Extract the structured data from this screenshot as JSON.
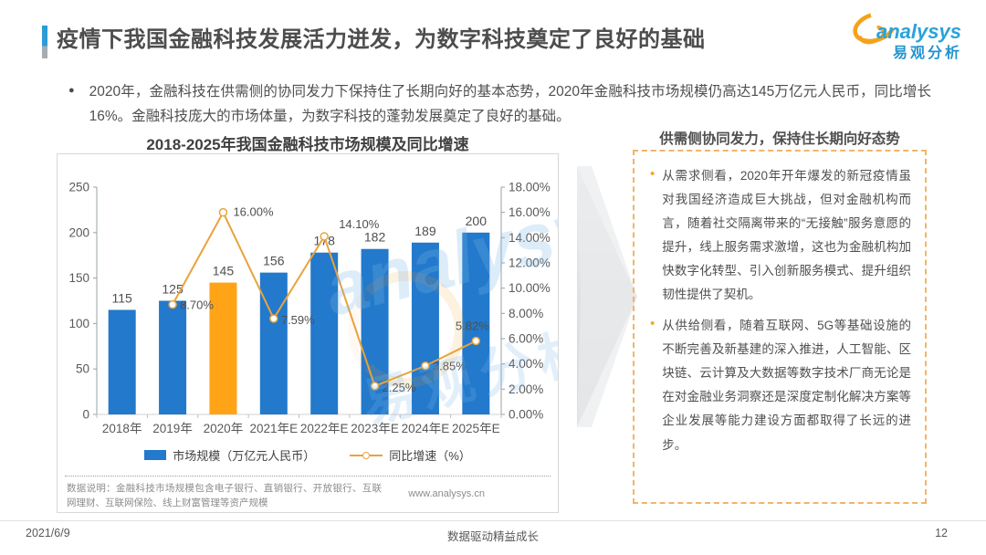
{
  "colors": {
    "bar_blue": "#2379cb",
    "bar_orange": "#ffa417",
    "line_orange": "#e8a33c",
    "accent_blue": "#2e9bd6",
    "panel_border": "#f2b469",
    "logo_blue": "#2aa2db",
    "logo_swirl_orange": "#f5a21b",
    "axis_text": "#595959",
    "note_gray": "#8c8c8c"
  },
  "header": {
    "title": "疫情下我国金融科技发展活力迸发，为数字科技奠定了良好的基础",
    "logo_en": "analysys",
    "logo_cn": "易观分析"
  },
  "summary": {
    "bullet_marker": "●",
    "text": "2020年，金融科技在供需侧的协同发力下保持住了长期向好的基本态势，2020年金融科技市场规模仍高达145万亿元人民币，同比增长16%。金融科技庞大的市场体量，为数字科技的蓬勃发展奠定了良好的基础。"
  },
  "chart": {
    "title": "2018-2025年我国金融科技市场规模及同比增速",
    "note": "数据说明：金融科技市场规模包含电子银行、直销银行、开放银行、互联网理财、互联网保险、线上财富管理等资产规模",
    "source": "www.analysys.cn",
    "watermark_en": "analysys",
    "watermark_cn": "易观分析"
  },
  "chart_data": {
    "type": "bar+line combo",
    "title": "2018-2025年我国金融科技市场规模及同比增速",
    "categories": [
      "2018年",
      "2019年",
      "2020年",
      "2021年E",
      "2022年E",
      "2023年E",
      "2024年E",
      "2025年E"
    ],
    "series": [
      {
        "name": "市场规模（万亿元人民币）",
        "type": "bar",
        "values": [
          115,
          125,
          145,
          156,
          178,
          182,
          189,
          200
        ],
        "highlight_index": 2
      },
      {
        "name": "同比增速（%）",
        "type": "line",
        "values": [
          null,
          8.7,
          16.0,
          7.59,
          14.1,
          2.25,
          3.85,
          5.82
        ],
        "point_labels": [
          "",
          "8.70%",
          "16.00%",
          "7.59%",
          "14.10%",
          "2.25%",
          "3.85%",
          "5.82%"
        ]
      }
    ],
    "left_axis": {
      "min": 0,
      "max": 250,
      "step": 50
    },
    "right_axis": {
      "min": 0,
      "max": 18,
      "step": 2,
      "decimals": 2,
      "suffix": "%"
    },
    "grid": false,
    "legend_position": "bottom"
  },
  "panel": {
    "title": "供需侧协同发力，保持住长期向好态势",
    "bullet_marker": "•",
    "bullets": [
      "从需求侧看，2020年开年爆发的新冠疫情虽对我国经济造成巨大挑战，但对金融机构而言，随着社交隔离带来的“无接触”服务意愿的提升，线上服务需求激增，这也为金融机构加快数字化转型、引入创新服务模式、提升组织韧性提供了契机。",
      "从供给侧看，随着互联网、5G等基础设施的不断完善及新基建的深入推进，人工智能、区块链、云计算及大数据等数字技术厂商无论是在对金融业务洞察还是深度定制化解决方案等企业发展等能力建设方面都取得了长远的进步。"
    ]
  },
  "footer": {
    "date": "2021/6/9",
    "slogan": "数据驱动精益成长",
    "page": "12"
  }
}
